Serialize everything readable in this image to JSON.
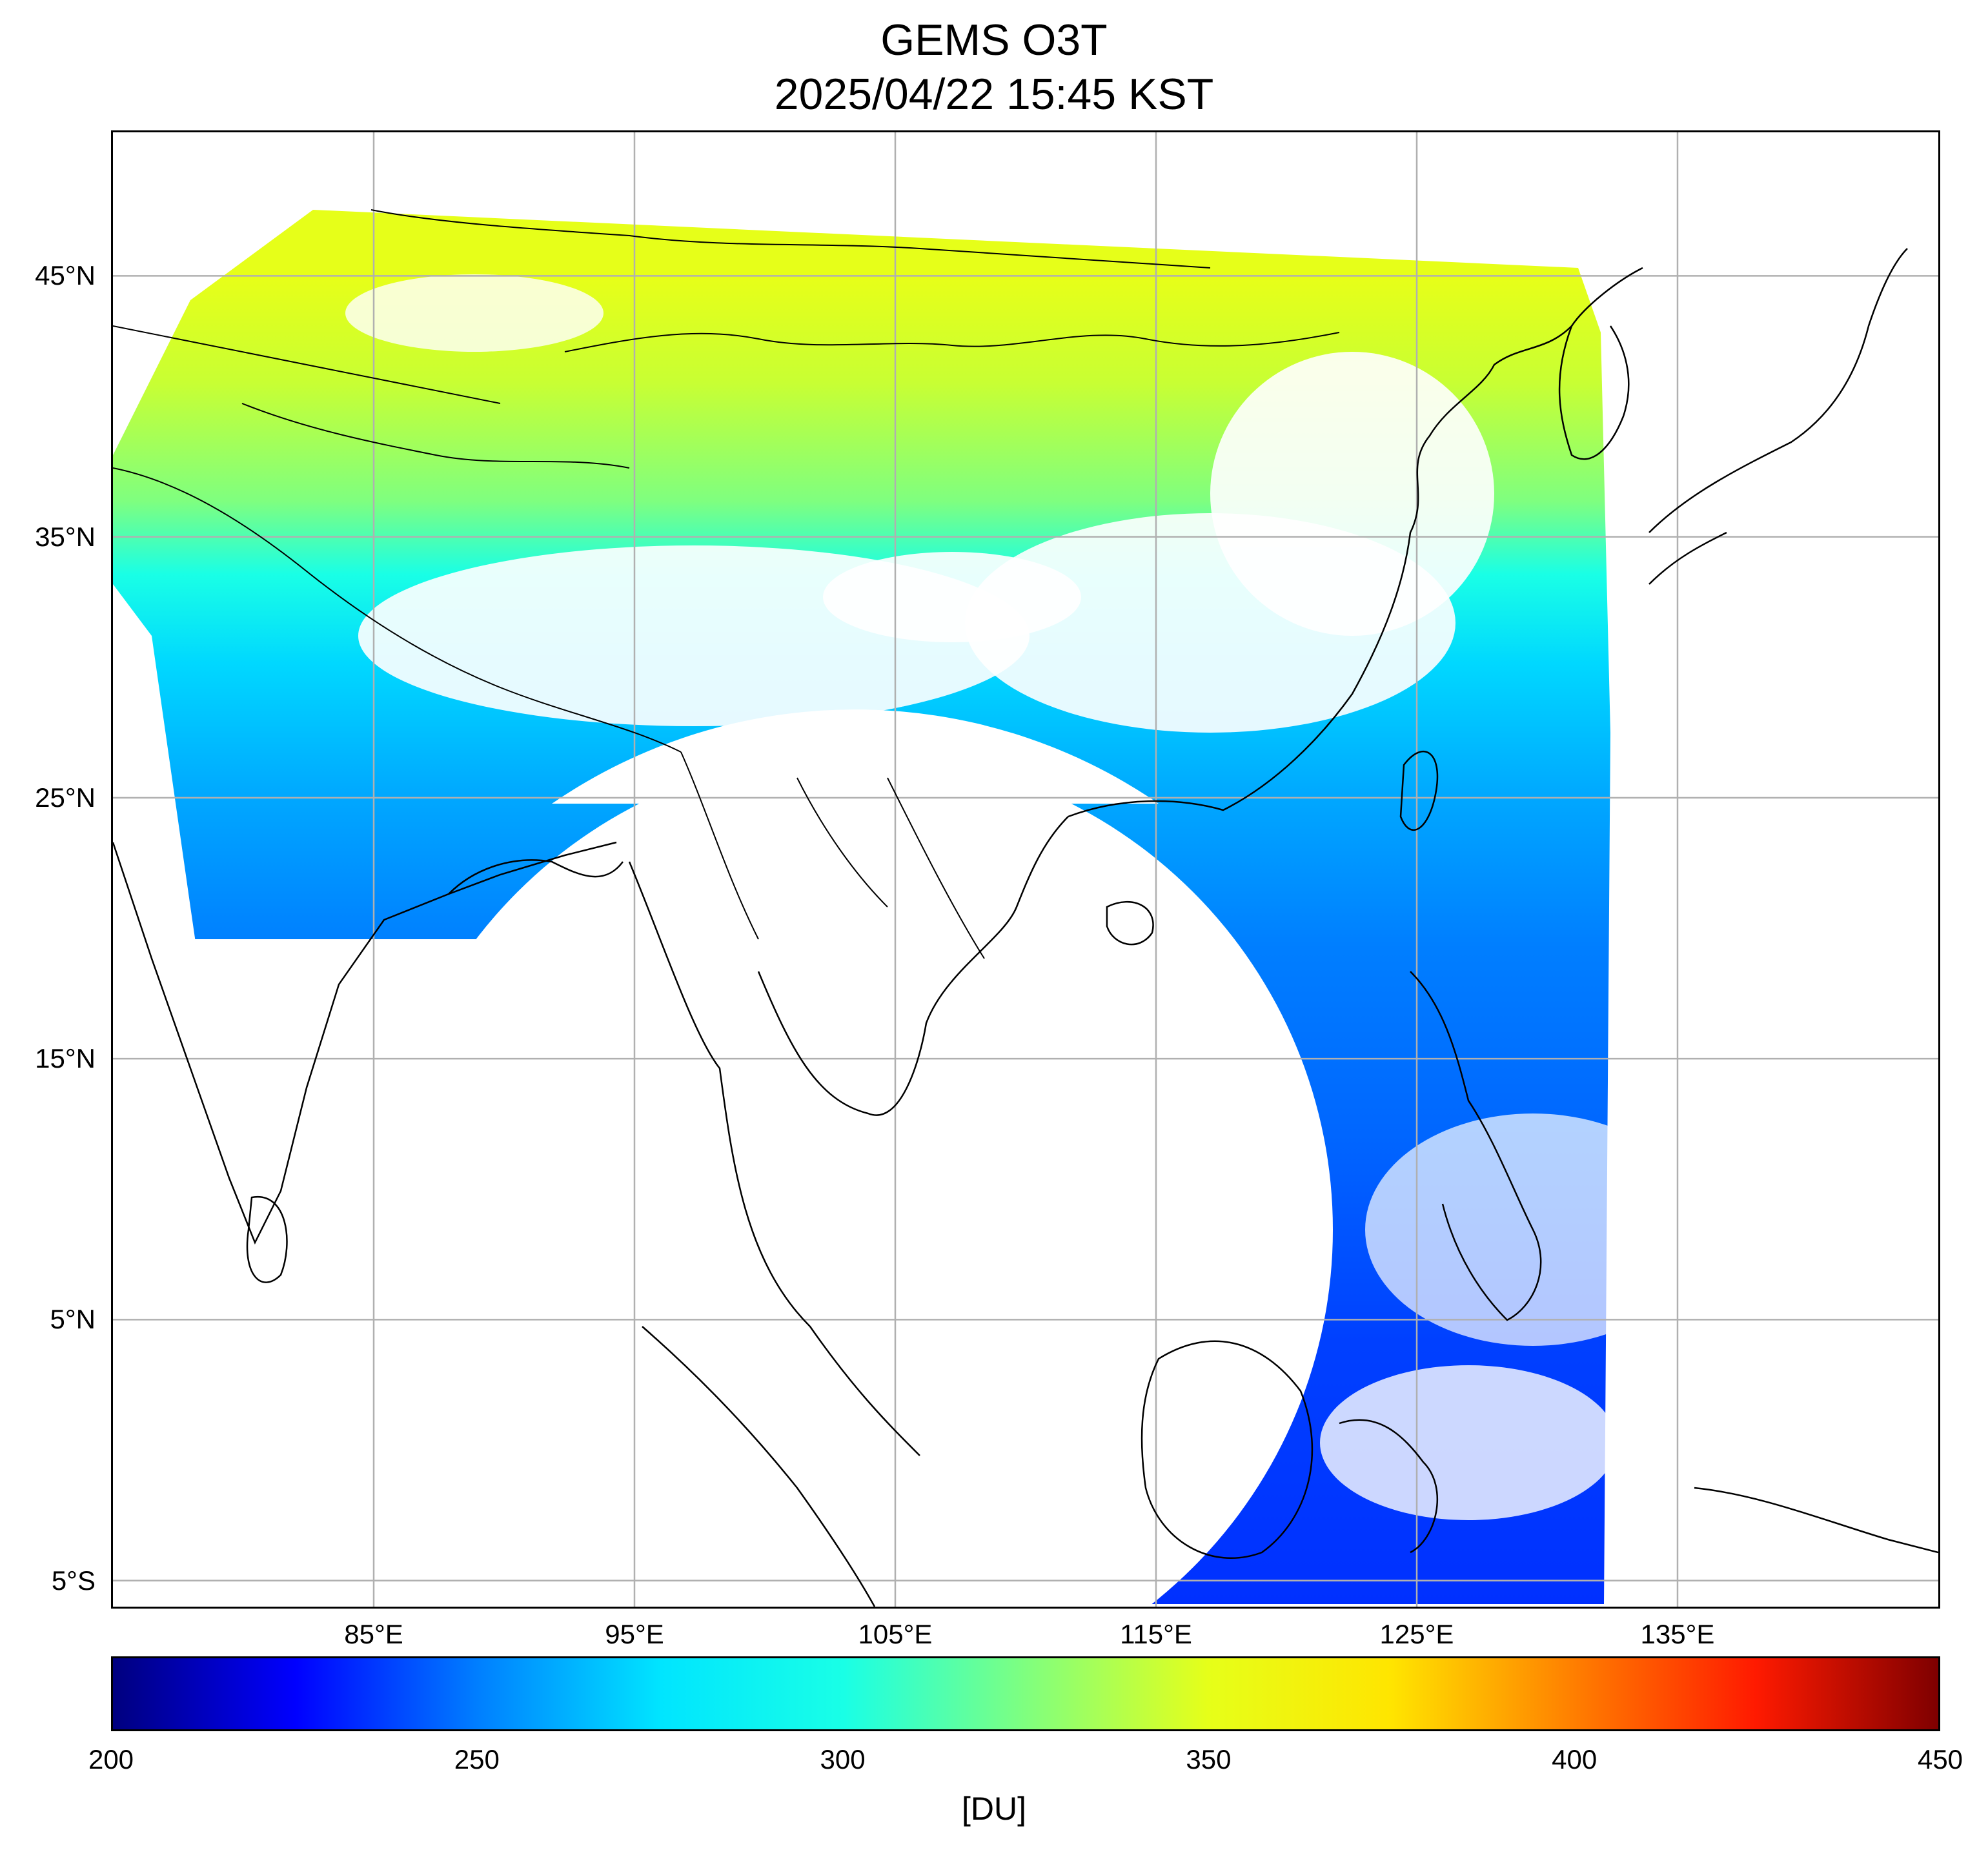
{
  "title": {
    "line1": "GEMS O3T",
    "line2": "2025/04/22 15:45 KST"
  },
  "map": {
    "lat_ticks": [
      {
        "label": "45°N",
        "lat": 45
      },
      {
        "label": "35°N",
        "lat": 35
      },
      {
        "label": "25°N",
        "lat": 25
      },
      {
        "label": "15°N",
        "lat": 15
      },
      {
        "label": "5°N",
        "lat": 5
      },
      {
        "label": "5°S",
        "lat": -5
      }
    ],
    "lon_ticks": [
      {
        "label": "85°E",
        "lon": 85
      },
      {
        "label": "95°E",
        "lon": 95
      },
      {
        "label": "105°E",
        "lon": 105
      },
      {
        "label": "115°E",
        "lon": 115
      },
      {
        "label": "125°E",
        "lon": 125
      },
      {
        "label": "135°E",
        "lon": 135
      }
    ],
    "extent": {
      "lon_min": 75,
      "lon_max": 145,
      "lat_min": -6,
      "lat_max": 50.5
    },
    "grid": true,
    "grid_color": "#b0b0b0"
  },
  "colorbar": {
    "min": 200,
    "max": 450,
    "ticks": [
      {
        "label": "200",
        "value": 200
      },
      {
        "label": "250",
        "value": 250
      },
      {
        "label": "300",
        "value": 300
      },
      {
        "label": "350",
        "value": 350
      },
      {
        "label": "400",
        "value": 400
      },
      {
        "label": "450",
        "value": 450
      }
    ],
    "unit": "[DU]",
    "colormap": [
      "#00007f",
      "#0000ff",
      "#007fff",
      "#00e5ff",
      "#19ffe6",
      "#7fff7f",
      "#e6ff19",
      "#ffe500",
      "#ff7f00",
      "#ff1a00",
      "#7f0000"
    ]
  },
  "colors": {
    "no_data": "#ffffff",
    "coastline": "#000000"
  }
}
